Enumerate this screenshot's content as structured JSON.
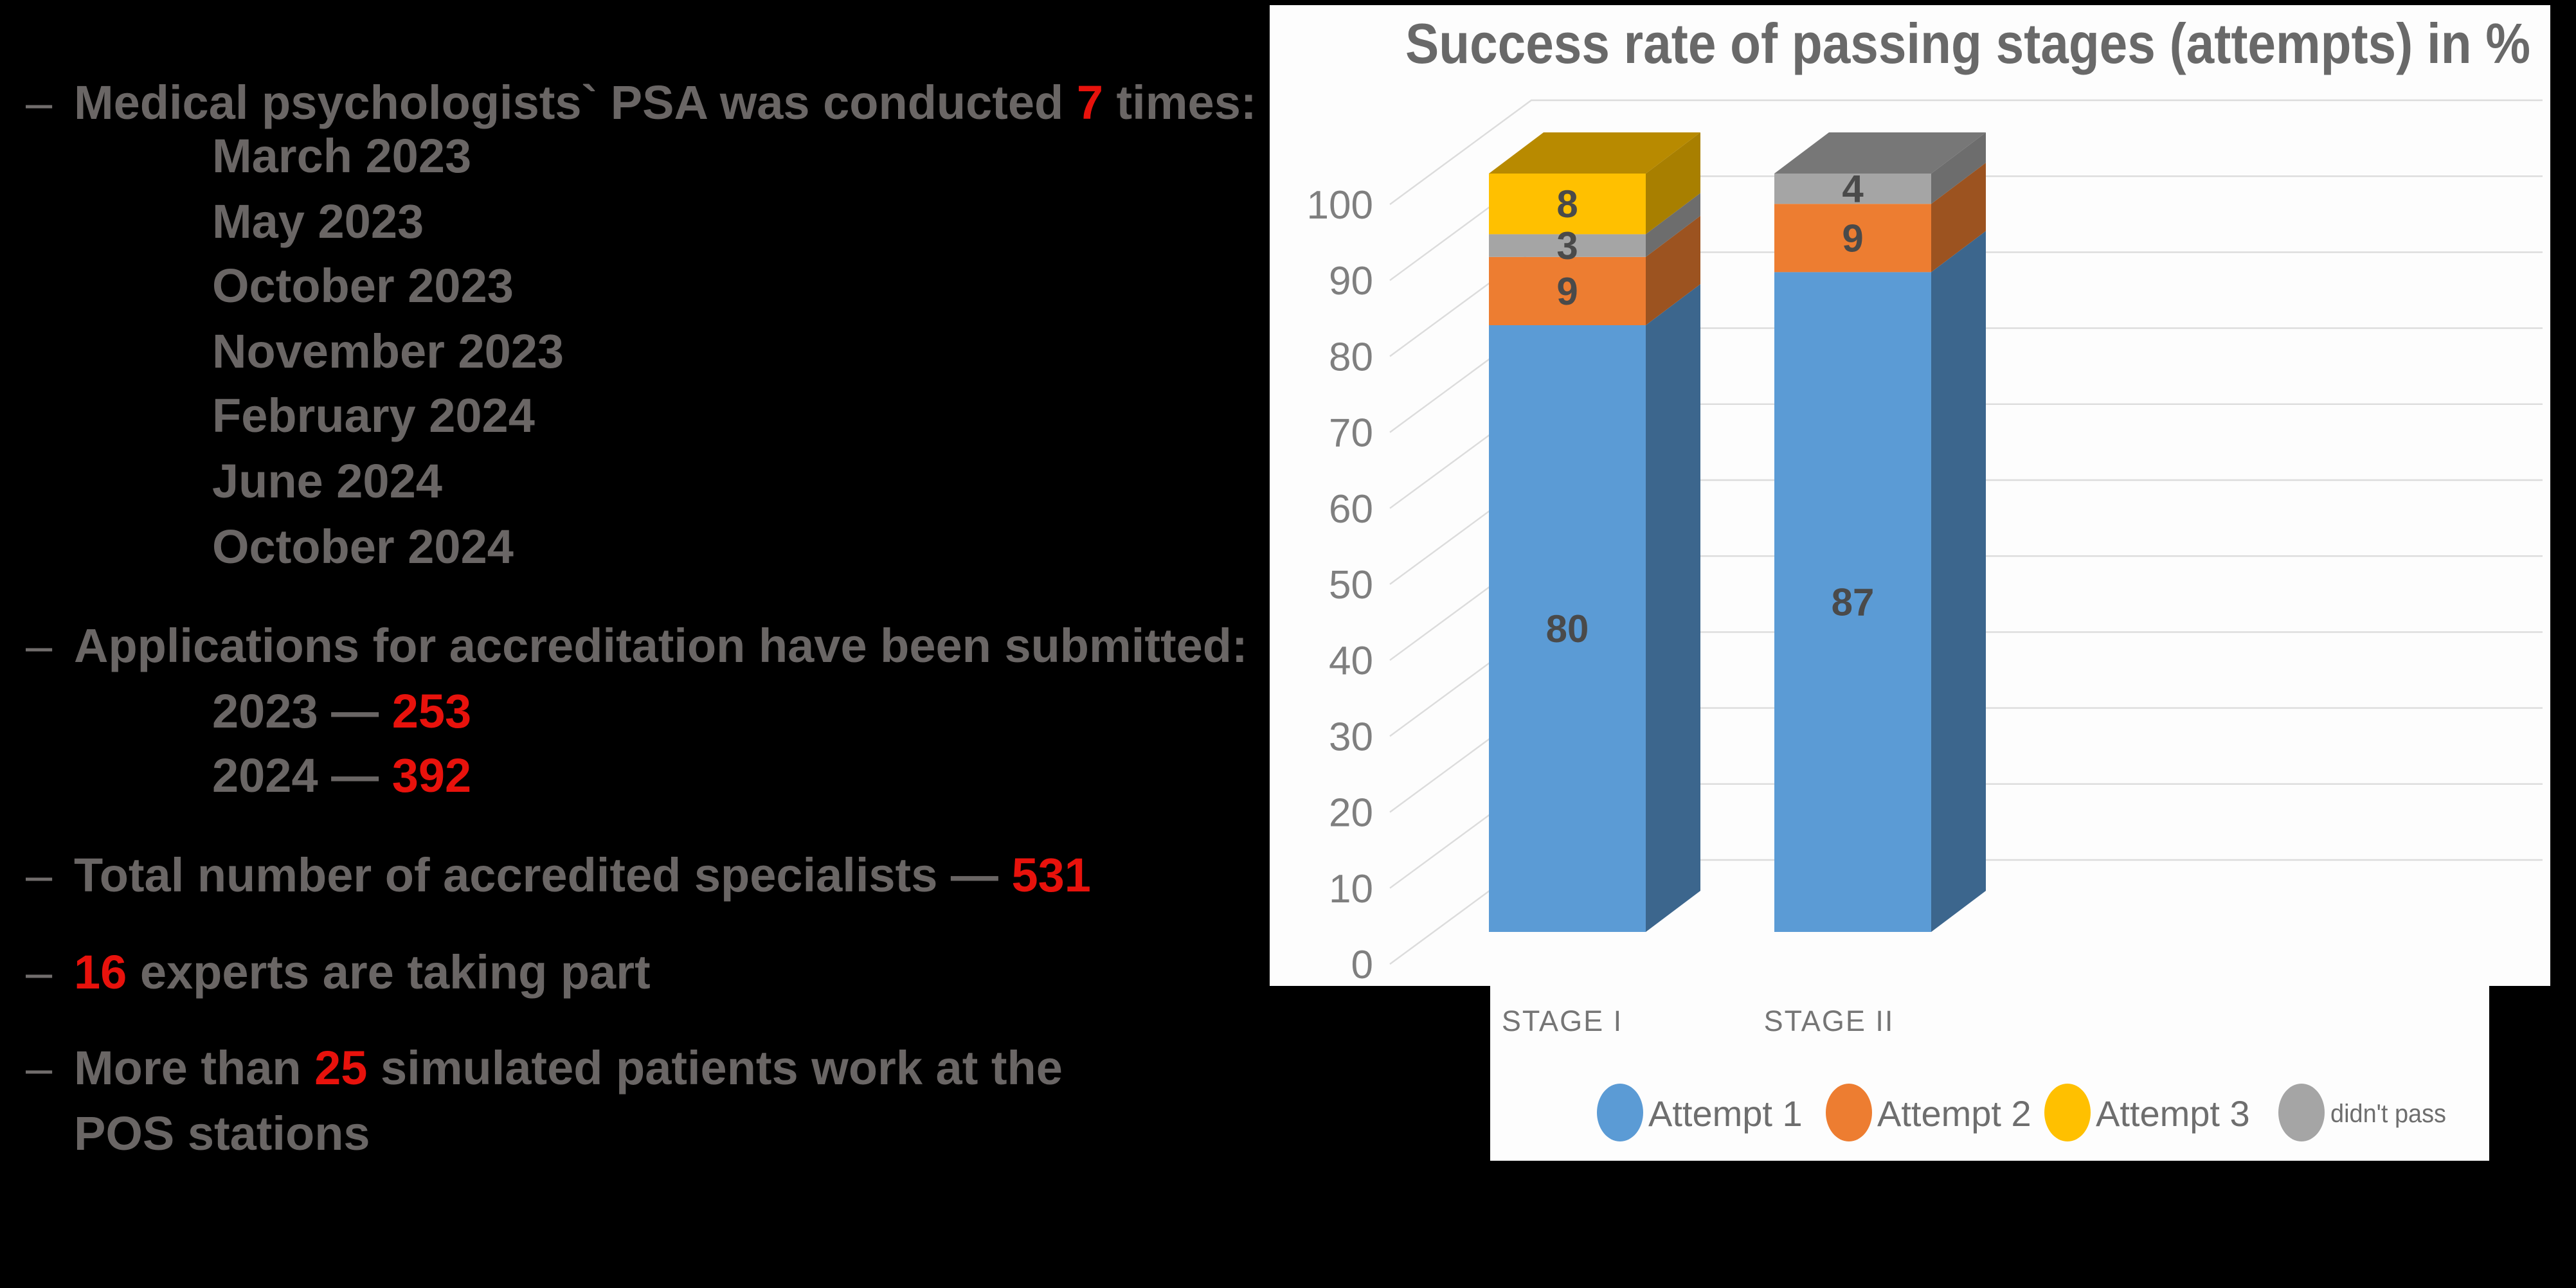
{
  "slide": {
    "background": "#000000",
    "text_color": "#6A6665",
    "accent_red": "#E8120C",
    "bullet_char": "–",
    "bullets": [
      {
        "y": 160,
        "bullet": true,
        "indent": false,
        "parts": [
          {
            "t": "Medical psychologists` PSA was conducted "
          },
          {
            "t": "7",
            "red": true
          },
          {
            "t": " times:"
          }
        ]
      },
      {
        "y": 243,
        "bullet": false,
        "indent": true,
        "parts": [
          {
            "t": "March 2023"
          }
        ]
      },
      {
        "y": 345,
        "bullet": false,
        "indent": true,
        "parts": [
          {
            "t": "May 2023"
          }
        ]
      },
      {
        "y": 445,
        "bullet": false,
        "indent": true,
        "parts": [
          {
            "t": "October 2023"
          }
        ]
      },
      {
        "y": 547,
        "bullet": false,
        "indent": true,
        "parts": [
          {
            "t": "November 2023"
          }
        ]
      },
      {
        "y": 647,
        "bullet": false,
        "indent": true,
        "parts": [
          {
            "t": "February 2024"
          }
        ]
      },
      {
        "y": 749,
        "bullet": false,
        "indent": true,
        "parts": [
          {
            "t": "June 2024"
          }
        ]
      },
      {
        "y": 851,
        "bullet": false,
        "indent": true,
        "parts": [
          {
            "t": "October 2024"
          }
        ]
      },
      {
        "y": 1005,
        "bullet": true,
        "indent": false,
        "parts": [
          {
            "t": "Applications for accreditation have been submitted:"
          }
        ]
      },
      {
        "y": 1107,
        "bullet": false,
        "indent": true,
        "parts": [
          {
            "t": "2023 — "
          },
          {
            "t": "253",
            "red": true
          }
        ]
      },
      {
        "y": 1207,
        "bullet": false,
        "indent": true,
        "parts": [
          {
            "t": "2024 — "
          },
          {
            "t": "392",
            "red": true
          }
        ]
      },
      {
        "y": 1362,
        "bullet": true,
        "indent": false,
        "parts": [
          {
            "t": "Total number of accredited specialists — "
          },
          {
            "t": "531",
            "red": true
          }
        ]
      },
      {
        "y": 1513,
        "bullet": true,
        "indent": false,
        "parts": [
          {
            "t": "16",
            "red": true
          },
          {
            "t": " experts are taking part"
          }
        ]
      },
      {
        "y": 1662,
        "bullet": true,
        "indent": false,
        "parts": [
          {
            "t": "More than "
          },
          {
            "t": "25",
            "red": true
          },
          {
            "t": " simulated patients work at the"
          }
        ]
      },
      {
        "y": 1764,
        "bullet": false,
        "indent": false,
        "parts": [
          {
            "t": "POS stations"
          }
        ]
      }
    ]
  },
  "chart_data": {
    "type": "bar",
    "variant": "3d-stacked-column",
    "title": "Success rate of passing stages (attempts) in %",
    "title_color": "#696969",
    "categories": [
      "STAGE I",
      "STAGE II"
    ],
    "series": [
      {
        "name": "Attempt 1",
        "color": "#5B9BD5",
        "values": [
          80,
          87
        ]
      },
      {
        "name": "Attempt 2",
        "color": "#ED7D31",
        "values": [
          9,
          9
        ]
      },
      {
        "name": "didn't pass",
        "color": "#A5A5A5",
        "values": [
          3,
          4
        ]
      },
      {
        "name": "Attempt 3",
        "color": "#FFC000",
        "values": [
          8,
          0
        ]
      }
    ],
    "legend": [
      {
        "label": "Attempt 1",
        "color": "#5B9BD5"
      },
      {
        "label": "Attempt 2",
        "color": "#ED7D31"
      },
      {
        "label": "Attempt 3",
        "color": "#FFC000"
      },
      {
        "label": "didn't pass",
        "color": "#A5A5A5"
      }
    ],
    "xlabel": "",
    "ylabel": "",
    "ylim": [
      0,
      100
    ],
    "ytick_step": 10,
    "grid": true,
    "legend_position": "bottom",
    "chart_bg": "#FDFDFD",
    "grid_color": "#DCDCDC",
    "axis_text_color": "#7F7F7F",
    "category_text_color": "#757575",
    "legend_text_color": "#6E6E6E",
    "data_label_color": "#4A4A4A"
  }
}
